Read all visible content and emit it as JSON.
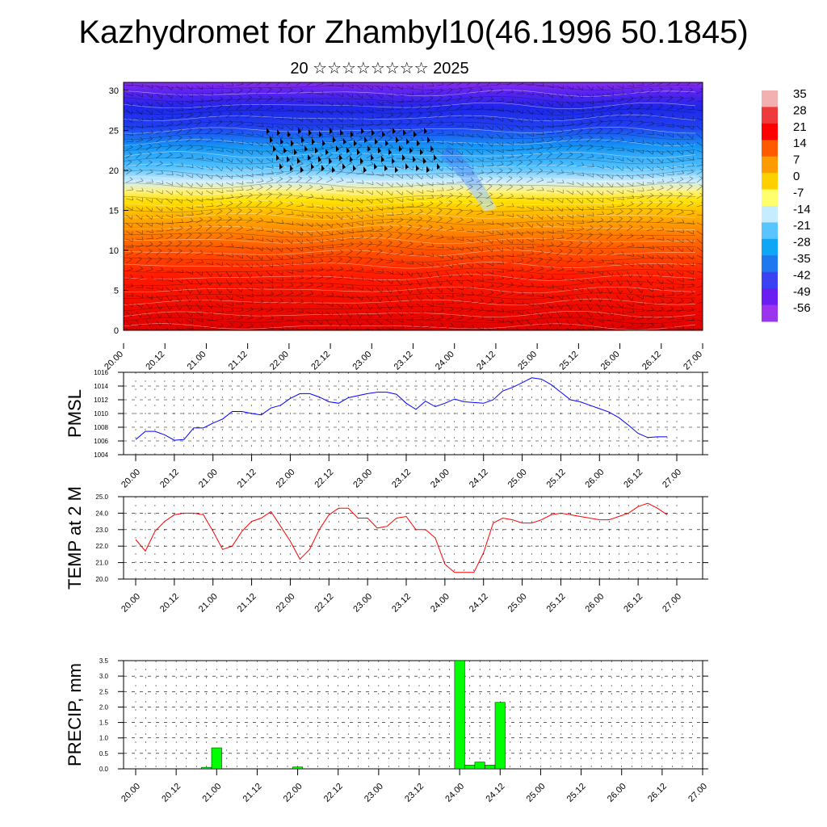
{
  "title": "Kazhydromet for Zhambyl10(46.1996 50.1845)",
  "subtitle": "20 ☆☆☆☆☆☆☆☆ 2025",
  "time_labels": [
    "20.00",
    "20.12",
    "21.00",
    "21.12",
    "22.00",
    "22.12",
    "23.00",
    "23.12",
    "24.00",
    "24.12",
    "25.00",
    "25.12",
    "26.00",
    "26.12",
    "27.00"
  ],
  "colorbar": {
    "labels": [
      "35",
      "28",
      "21",
      "14",
      "7",
      "0",
      "-7",
      "-14",
      "-21",
      "-28",
      "-35",
      "-42",
      "-49",
      "-56"
    ],
    "colors": [
      "#f3b0b0",
      "#ee3a3a",
      "#ff0000",
      "#ff5a00",
      "#ff9a00",
      "#ffd000",
      "#ffff6e",
      "#c6ecff",
      "#5ac4ff",
      "#10a6f6",
      "#1e78ef",
      "#3a42f2",
      "#6a1ef2",
      "#9a34ee"
    ]
  },
  "chart_data": [
    {
      "type": "heatmap",
      "description_values": "temperature cross-section with wind barbs",
      "x_labels": [
        "20.00",
        "20.12",
        "21.00",
        "21.12",
        "22.00",
        "22.12",
        "23.00",
        "23.12",
        "24.00",
        "24.12",
        "25.00",
        "25.12",
        "26.00",
        "26.12",
        "27.00"
      ],
      "yticks": [
        0,
        5,
        10,
        15,
        20,
        25,
        30
      ],
      "ylim": [
        0,
        31
      ],
      "xlim": [
        0,
        14
      ]
    },
    {
      "type": "line",
      "ylabel": "PMSL",
      "ylim": [
        1004,
        1016
      ],
      "yticks": [
        1004,
        1006,
        1008,
        1010,
        1012,
        1014,
        1016
      ],
      "color": "#0000ff",
      "x": [
        0,
        0.25,
        0.5,
        0.75,
        1,
        1.25,
        1.5,
        1.75,
        2,
        2.25,
        2.5,
        2.75,
        3,
        3.25,
        3.5,
        3.75,
        4,
        4.25,
        4.5,
        4.75,
        5,
        5.25,
        5.5,
        5.75,
        6,
        6.25,
        6.5,
        6.75,
        7,
        7.25,
        7.5,
        7.75,
        8,
        8.25,
        8.5,
        8.75,
        9,
        9.25,
        9.5,
        9.75,
        10,
        10.25,
        10.5,
        10.75,
        11,
        11.25,
        11.5,
        11.75,
        12,
        12.25,
        12.5,
        12.75,
        13,
        13.25,
        13.5,
        13.75
      ],
      "values": [
        1006.2,
        1007.4,
        1007.4,
        1006.9,
        1006.1,
        1006.2,
        1007.9,
        1007.9,
        1008.6,
        1009.2,
        1010.3,
        1010.3,
        1010.0,
        1009.8,
        1010.8,
        1011.2,
        1012.2,
        1012.9,
        1012.9,
        1012.4,
        1011.7,
        1011.5,
        1012.3,
        1012.6,
        1012.9,
        1013.1,
        1013.1,
        1012.8,
        1011.5,
        1010.6,
        1011.8,
        1011.0,
        1011.5,
        1012.1,
        1011.7,
        1011.6,
        1011.5,
        1012.0,
        1013.3,
        1013.8,
        1014.5,
        1015.2,
        1015.0,
        1014.2,
        1013.1,
        1012.0,
        1011.7,
        1011.2,
        1010.7,
        1010.2,
        1009.4,
        1008.3,
        1007.1,
        1006.5,
        1006.6,
        1006.6
      ]
    },
    {
      "type": "line",
      "ylabel": "TEMP at 2 M",
      "ylim": [
        20.0,
        25.0
      ],
      "yticks": [
        20.0,
        21.0,
        22.0,
        23.0,
        24.0,
        25.0
      ],
      "color": "#ff0000",
      "x": [
        0,
        0.25,
        0.5,
        0.75,
        1,
        1.25,
        1.5,
        1.75,
        2,
        2.25,
        2.5,
        2.75,
        3,
        3.25,
        3.5,
        3.75,
        4,
        4.25,
        4.5,
        4.75,
        5,
        5.25,
        5.5,
        5.75,
        6,
        6.25,
        6.5,
        6.75,
        7,
        7.25,
        7.5,
        7.75,
        8,
        8.25,
        8.5,
        8.75,
        9,
        9.25,
        9.5,
        9.75,
        10,
        10.25,
        10.5,
        10.75,
        11,
        11.25,
        11.5,
        11.75,
        12,
        12.25,
        12.5,
        12.75,
        13,
        13.25,
        13.5,
        13.75
      ],
      "values": [
        22.4,
        21.7,
        22.9,
        23.5,
        23.9,
        24.0,
        24.0,
        23.9,
        22.9,
        21.8,
        22.0,
        22.9,
        23.5,
        23.7,
        24.1,
        23.2,
        22.3,
        21.2,
        21.8,
        23.0,
        23.9,
        24.3,
        24.3,
        23.7,
        23.7,
        23.1,
        23.2,
        23.7,
        23.8,
        23.0,
        23.0,
        22.5,
        20.9,
        20.4,
        20.4,
        20.4,
        21.6,
        23.4,
        23.7,
        23.6,
        23.4,
        23.4,
        23.6,
        23.9,
        24.0,
        23.9,
        23.8,
        23.7,
        23.6,
        23.6,
        23.8,
        24.0,
        24.4,
        24.6,
        24.3,
        23.9
      ]
    },
    {
      "type": "bar",
      "ylabel": "PRECIP, mm",
      "ylim": [
        0,
        3.5
      ],
      "yticks": [
        0.0,
        0.5,
        1.0,
        1.5,
        2.0,
        2.5,
        3.0,
        3.5
      ],
      "color": "#00ff00",
      "x": [
        1.75,
        2.0,
        4.0,
        8.0,
        8.25,
        8.5,
        8.75,
        9.0
      ],
      "values": [
        0.05,
        0.68,
        0.06,
        3.5,
        0.12,
        0.22,
        0.12,
        2.15
      ]
    }
  ]
}
